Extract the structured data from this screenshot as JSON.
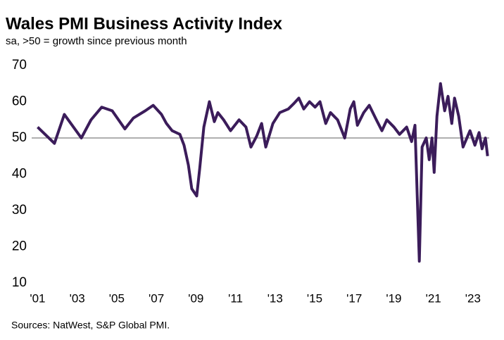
{
  "chart_data": {
    "type": "line",
    "title": "Wales PMI Business Activity Index",
    "subtitle": "sa, >50 = growth  since previous month",
    "source": "Sources: NatWest, S&P Global PMI.",
    "x": [
      2001.0,
      2001.85,
      2002.35,
      2003.21,
      2003.7,
      2004.24,
      2004.77,
      2005.41,
      2005.84,
      2006.44,
      2006.84,
      2007.26,
      2007.51,
      2007.8,
      2008.19,
      2008.4,
      2008.62,
      2008.79,
      2009.04,
      2009.19,
      2009.4,
      2009.68,
      2009.93,
      2010.11,
      2010.4,
      2010.75,
      2011.18,
      2011.53,
      2011.78,
      2012.07,
      2012.32,
      2012.53,
      2012.89,
      2013.24,
      2013.67,
      2013.95,
      2014.2,
      2014.45,
      2014.74,
      2015.02,
      2015.27,
      2015.56,
      2015.8,
      2016.16,
      2016.52,
      2016.8,
      2016.98,
      2017.16,
      2017.48,
      2017.76,
      2018.12,
      2018.4,
      2018.65,
      2019.01,
      2019.29,
      2019.65,
      2019.9,
      2020.07,
      2020.29,
      2020.43,
      2020.64,
      2020.79,
      2020.93,
      2021.04,
      2021.18,
      2021.36,
      2021.57,
      2021.74,
      2021.93,
      2022.07,
      2022.28,
      2022.5,
      2022.85,
      2023.1,
      2023.31,
      2023.46,
      2023.63,
      2023.74
    ],
    "values": [
      53,
      48.5,
      56.5,
      50,
      55,
      58.5,
      57.5,
      52.5,
      55.5,
      57.5,
      59,
      56.5,
      54,
      52,
      51,
      48,
      42.5,
      36,
      34,
      41.5,
      53,
      60,
      54.5,
      57,
      55,
      52,
      55,
      53,
      47.5,
      50.5,
      54,
      47.5,
      54,
      57,
      58,
      59.5,
      61,
      58,
      60,
      58.5,
      60,
      54,
      57,
      55,
      50,
      58,
      60,
      53.5,
      57,
      59,
      55,
      52,
      55,
      53,
      51,
      53,
      49,
      53.5,
      16,
      47.5,
      50,
      44,
      50,
      40.5,
      56,
      65,
      57.5,
      61.5,
      54,
      61,
      56,
      47.5,
      52,
      48,
      51.5,
      47,
      50,
      45
    ],
    "color": "#3b1c5a",
    "reference_line": 50,
    "xlim": [
      2000.7,
      2024
    ],
    "xticks": [
      {
        "value": 2001,
        "label": "'01"
      },
      {
        "value": 2003,
        "label": "'03"
      },
      {
        "value": 2005,
        "label": "'05"
      },
      {
        "value": 2007,
        "label": "'07"
      },
      {
        "value": 2009,
        "label": "'09"
      },
      {
        "value": 2011,
        "label": "'11"
      },
      {
        "value": 2013,
        "label": "'13"
      },
      {
        "value": 2015,
        "label": "'15"
      },
      {
        "value": 2017,
        "label": "'17"
      },
      {
        "value": 2019,
        "label": "'19"
      },
      {
        "value": 2021,
        "label": "'21"
      },
      {
        "value": 2023,
        "label": "'23"
      }
    ],
    "ylim": [
      10,
      70
    ],
    "yticks": [
      10,
      20,
      30,
      40,
      50,
      60,
      70
    ],
    "grid": false
  }
}
